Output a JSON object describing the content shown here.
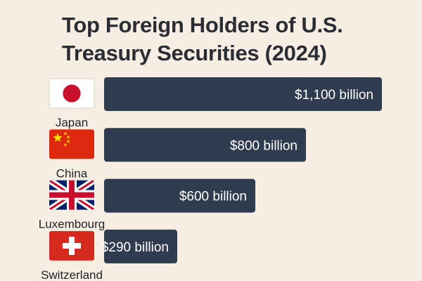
{
  "chart_data": {
    "type": "bar",
    "orientation": "horizontal",
    "title": [
      "Top Foreign Holders of U.S.",
      "Treasury Securities (2024)"
    ],
    "categories": [
      "Japan",
      "China",
      "Luxembourg",
      "Switzerland"
    ],
    "values": [
      1100,
      800,
      600,
      290
    ],
    "value_labels": [
      "$1,100 billion",
      "$800 billion",
      "$600 billion",
      "$290 billion"
    ],
    "flags": [
      "japan-flag-icon",
      "china-flag-icon",
      "uk-flag-icon",
      "switzerland-flag-icon"
    ],
    "xlim": [
      0,
      1100
    ],
    "grid": false,
    "colors": {
      "bar": "#2f3b4e",
      "background": "#f6ede3"
    }
  }
}
